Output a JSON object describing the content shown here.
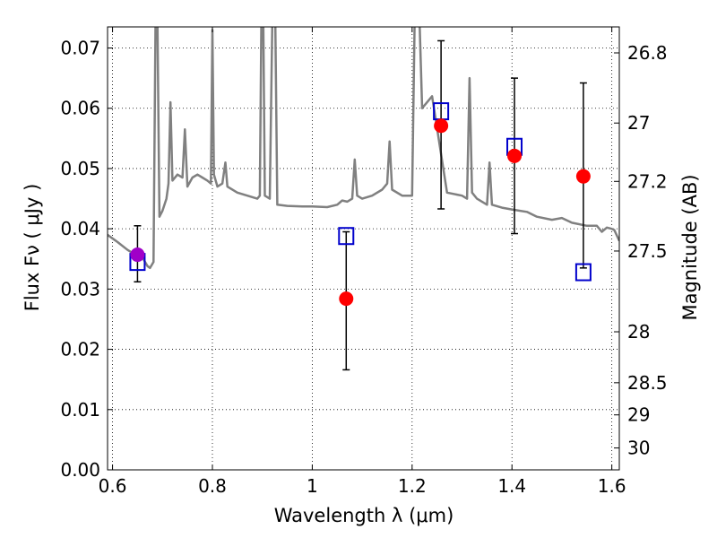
{
  "chart_data": {
    "type": "scatter",
    "xlabel": "Wavelength  λ (μm)",
    "ylabel": "Flux  Fν  ( μJy )",
    "y2label": "Magnitude (AB)",
    "xlim": [
      0.59,
      1.615
    ],
    "ylim": [
      0.0,
      0.0735
    ],
    "xticks": [
      0.6,
      0.8,
      1.0,
      1.2,
      1.4,
      1.6
    ],
    "xtick_labels": [
      "0.6",
      "0.8",
      "1",
      "1.2",
      "1.4",
      "1.6"
    ],
    "yticks": [
      0.0,
      0.01,
      0.02,
      0.03,
      0.04,
      0.05,
      0.06,
      0.07
    ],
    "ytick_labels": [
      "0.00",
      "0.01",
      "0.02",
      "0.03",
      "0.04",
      "0.05",
      "0.06",
      "0.07"
    ],
    "y2ticks": [
      26.8,
      27,
      27.2,
      27.5,
      28,
      28.5,
      29,
      30
    ],
    "y2tick_labels": [
      "26.8",
      "27",
      "27.2",
      "27.5",
      "28",
      "28.5",
      "29",
      "30"
    ],
    "grid": true,
    "colors": {
      "spectrum": "#808080",
      "observed": "#ff0000",
      "observed_first": "#a000c8",
      "model": "#0000cc",
      "errorbar": "#000000"
    },
    "observed": [
      {
        "x": 0.65,
        "y": 0.0357,
        "yerr_low": 0.0312,
        "yerr_high": 0.0405
      },
      {
        "x": 1.068,
        "y": 0.0284,
        "yerr_low": 0.0166,
        "yerr_high": 0.0395
      },
      {
        "x": 1.258,
        "y": 0.0571,
        "yerr_low": 0.0433,
        "yerr_high": 0.0712
      },
      {
        "x": 1.405,
        "y": 0.0521,
        "yerr_low": 0.0392,
        "yerr_high": 0.065
      },
      {
        "x": 1.543,
        "y": 0.0487,
        "yerr_low": 0.0335,
        "yerr_high": 0.0642
      }
    ],
    "model_points": [
      {
        "x": 0.65,
        "y": 0.0345
      },
      {
        "x": 1.068,
        "y": 0.0388
      },
      {
        "x": 1.258,
        "y": 0.0595
      },
      {
        "x": 1.405,
        "y": 0.0536
      },
      {
        "x": 1.543,
        "y": 0.0328
      }
    ],
    "spectrum": [
      [
        0.59,
        0.039
      ],
      [
        0.61,
        0.0378
      ],
      [
        0.63,
        0.0365
      ],
      [
        0.65,
        0.0355
      ],
      [
        0.66,
        0.0352
      ],
      [
        0.67,
        0.0338
      ],
      [
        0.675,
        0.0335
      ],
      [
        0.682,
        0.0345
      ],
      [
        0.686,
        0.074
      ],
      [
        0.69,
        0.074
      ],
      [
        0.694,
        0.042
      ],
      [
        0.7,
        0.043
      ],
      [
        0.708,
        0.045
      ],
      [
        0.712,
        0.0475
      ],
      [
        0.716,
        0.061
      ],
      [
        0.72,
        0.048
      ],
      [
        0.73,
        0.049
      ],
      [
        0.74,
        0.0485
      ],
      [
        0.745,
        0.0565
      ],
      [
        0.75,
        0.047
      ],
      [
        0.76,
        0.0485
      ],
      [
        0.77,
        0.049
      ],
      [
        0.78,
        0.0485
      ],
      [
        0.79,
        0.048
      ],
      [
        0.797,
        0.0475
      ],
      [
        0.8,
        0.073
      ],
      [
        0.803,
        0.049
      ],
      [
        0.81,
        0.047
      ],
      [
        0.82,
        0.0475
      ],
      [
        0.826,
        0.051
      ],
      [
        0.83,
        0.047
      ],
      [
        0.85,
        0.046
      ],
      [
        0.87,
        0.0455
      ],
      [
        0.89,
        0.045
      ],
      [
        0.895,
        0.0455
      ],
      [
        0.898,
        0.074
      ],
      [
        0.902,
        0.074
      ],
      [
        0.905,
        0.0455
      ],
      [
        0.915,
        0.045
      ],
      [
        0.92,
        0.074
      ],
      [
        0.926,
        0.074
      ],
      [
        0.93,
        0.044
      ],
      [
        0.95,
        0.0438
      ],
      [
        0.98,
        0.0437
      ],
      [
        1.0,
        0.0437
      ],
      [
        1.03,
        0.0436
      ],
      [
        1.05,
        0.044
      ],
      [
        1.06,
        0.0447
      ],
      [
        1.07,
        0.0445
      ],
      [
        1.08,
        0.045
      ],
      [
        1.085,
        0.0515
      ],
      [
        1.09,
        0.0455
      ],
      [
        1.1,
        0.045
      ],
      [
        1.12,
        0.0455
      ],
      [
        1.14,
        0.0465
      ],
      [
        1.15,
        0.0475
      ],
      [
        1.155,
        0.0545
      ],
      [
        1.16,
        0.0465
      ],
      [
        1.18,
        0.0455
      ],
      [
        1.2,
        0.0455
      ],
      [
        1.205,
        0.074
      ],
      [
        1.215,
        0.074
      ],
      [
        1.22,
        0.06
      ],
      [
        1.24,
        0.062
      ],
      [
        1.27,
        0.046
      ],
      [
        1.3,
        0.0455
      ],
      [
        1.31,
        0.045
      ],
      [
        1.315,
        0.065
      ],
      [
        1.32,
        0.046
      ],
      [
        1.33,
        0.045
      ],
      [
        1.35,
        0.044
      ],
      [
        1.355,
        0.051
      ],
      [
        1.36,
        0.044
      ],
      [
        1.38,
        0.0435
      ],
      [
        1.4,
        0.0432
      ],
      [
        1.43,
        0.0428
      ],
      [
        1.45,
        0.042
      ],
      [
        1.48,
        0.0415
      ],
      [
        1.5,
        0.0418
      ],
      [
        1.52,
        0.041
      ],
      [
        1.55,
        0.0405
      ],
      [
        1.57,
        0.0405
      ],
      [
        1.58,
        0.0395
      ],
      [
        1.59,
        0.0402
      ],
      [
        1.6,
        0.04
      ],
      [
        1.605,
        0.0398
      ],
      [
        1.615,
        0.038
      ]
    ]
  }
}
